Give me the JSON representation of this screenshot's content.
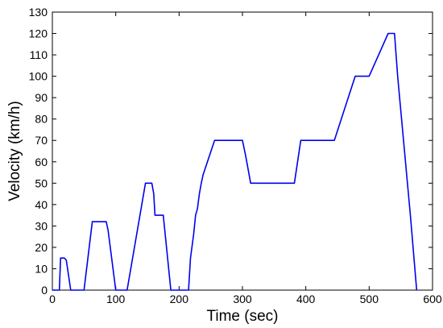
{
  "chart_data": {
    "type": "line",
    "xlabel": "Time (sec)",
    "ylabel": "Velocity (km/h)",
    "xlim": [
      0,
      600
    ],
    "ylim": [
      0,
      130
    ],
    "xticks": [
      0,
      100,
      200,
      300,
      400,
      500,
      600
    ],
    "yticks": [
      0,
      10,
      20,
      30,
      40,
      50,
      60,
      70,
      80,
      90,
      100,
      110,
      120,
      130
    ],
    "grid": false,
    "series": [
      {
        "color": "#0000ee",
        "x": [
          0,
          11,
          13,
          19,
          22,
          29,
          50,
          63,
          66,
          85,
          88,
          100,
          118,
          147,
          150,
          157,
          160,
          162,
          175,
          187,
          215,
          218,
          223,
          226,
          229,
          232,
          235,
          238,
          256,
          259,
          300,
          305,
          313,
          382,
          392,
          395,
          445,
          478,
          482,
          500,
          515,
          530,
          535,
          540,
          545,
          565,
          575
        ],
        "y": [
          0,
          0,
          15,
          15,
          14,
          0,
          0,
          32,
          32,
          32,
          28,
          0,
          0,
          50,
          50,
          50,
          45,
          35,
          35,
          0,
          0,
          15,
          26,
          35,
          38,
          45,
          50,
          54,
          70,
          70,
          70,
          63,
          50,
          50,
          70,
          70,
          70,
          100,
          100,
          100,
          110,
          120,
          120,
          120,
          100,
          35,
          0
        ]
      }
    ]
  }
}
